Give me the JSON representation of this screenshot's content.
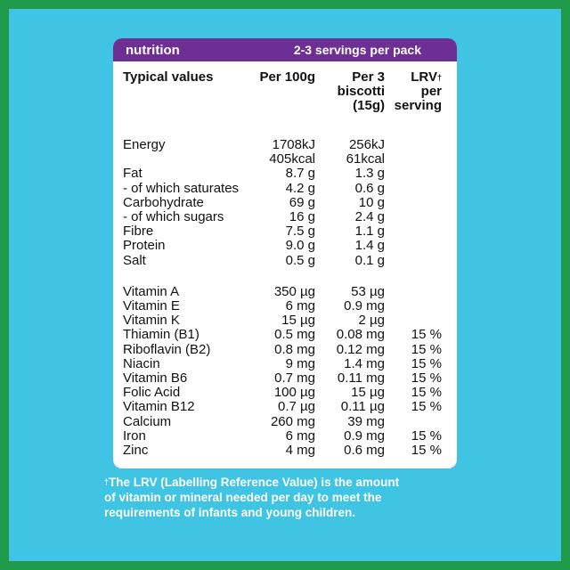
{
  "banner": {
    "left": "nutrition",
    "right": "2-3 servings per pack"
  },
  "headers": {
    "label": "Typical values",
    "per100": "Per 100g",
    "per3_line1": "Per 3",
    "per3_line2": "biscotti",
    "per3_line3": "(15g)",
    "lrv_line1": "LRV",
    "lrv_dagger": "†",
    "lrv_line2": "per",
    "lrv_line3": "serving"
  },
  "rows": [
    {
      "label": "Energy",
      "per100": "1708kJ",
      "per3": "256kJ",
      "lrv": ""
    },
    {
      "label": "",
      "per100": "405kcal",
      "per3": "61kcal",
      "lrv": ""
    },
    {
      "label": "Fat",
      "per100": "8.7 g",
      "per3": "1.3 g",
      "lrv": ""
    },
    {
      "label": "- of which saturates",
      "per100": "4.2 g",
      "per3": "0.6 g",
      "lrv": ""
    },
    {
      "label": "Carbohydrate",
      "per100": "69 g",
      "per3": "10 g",
      "lrv": ""
    },
    {
      "label": "- of which sugars",
      "per100": "16 g",
      "per3": "2.4 g",
      "lrv": ""
    },
    {
      "label": "Fibre",
      "per100": "7.5 g",
      "per3": "1.1 g",
      "lrv": ""
    },
    {
      "label": "Protein",
      "per100": "9.0 g",
      "per3": "1.4 g",
      "lrv": ""
    },
    {
      "label": "Salt",
      "per100": "0.5 g",
      "per3": "0.1 g",
      "lrv": ""
    },
    {
      "label": "Vitamin A",
      "per100": "350 µg",
      "per3": "53 µg",
      "lrv": ""
    },
    {
      "label": "Vitamin E",
      "per100": "6 mg",
      "per3": "0.9 mg",
      "lrv": ""
    },
    {
      "label": "Vitamin K",
      "per100": "15 µg",
      "per3": "2 µg",
      "lrv": ""
    },
    {
      "label": "Thiamin (B1)",
      "per100": "0.5 mg",
      "per3": "0.08 mg",
      "lrv": "15 %"
    },
    {
      "label": "Riboflavin (B2)",
      "per100": "0.8 mg",
      "per3": "0.12 mg",
      "lrv": "15 %"
    },
    {
      "label": "Niacin",
      "per100": "9 mg",
      "per3": "1.4 mg",
      "lrv": "15 %"
    },
    {
      "label": "Vitamin B6",
      "per100": "0.7 mg",
      "per3": "0.11 mg",
      "lrv": "15 %"
    },
    {
      "label": "Folic Acid",
      "per100": "100 µg",
      "per3": "15 µg",
      "lrv": "15 %"
    },
    {
      "label": "Vitamin B12",
      "per100": "0.7 µg",
      "per3": "0.11 µg",
      "lrv": "15 %"
    },
    {
      "label": "Calcium",
      "per100": "260 mg",
      "per3": "39 mg",
      "lrv": ""
    },
    {
      "label": "Iron",
      "per100": "6 mg",
      "per3": "0.9 mg",
      "lrv": "15 %"
    },
    {
      "label": "Zinc",
      "per100": "4 mg",
      "per3": "0.6 mg",
      "lrv": "15 %"
    }
  ],
  "footnote": {
    "dagger": "†",
    "line1": "The LRV (Labelling Reference Value) is the amount",
    "line2": "of vitamin or mineral needed per day to meet the",
    "line3": "requirements of infants and young children."
  },
  "colors": {
    "outer": "#1f9a4b",
    "background": "#3fc4e4",
    "banner": "#6d2f94",
    "panel": "#ffffff"
  }
}
